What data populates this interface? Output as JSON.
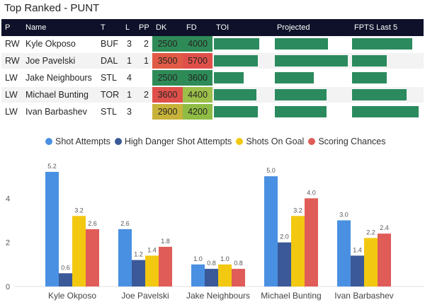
{
  "title": "Top Ranked - PUNT",
  "table": {
    "headers": [
      "P",
      "Name",
      "T",
      "L",
      "PP",
      "DK",
      "FD",
      "TOI",
      "Projected",
      "FPTS Last 5"
    ],
    "rows": [
      {
        "p": "RW",
        "name": "Kyle Okposo",
        "t": "BUF",
        "l": "3",
        "pp": "2",
        "dk": "2500",
        "fd": "4000",
        "dk_color": "#2e8b57",
        "fd_color": "#2e8b57",
        "toi": 0.8,
        "proj": 0.73,
        "fpts": 0.88
      },
      {
        "p": "RW",
        "name": "Joe Pavelski",
        "t": "DAL",
        "l": "1",
        "pp": "1",
        "dk": "3500",
        "fd": "5700",
        "dk_color": "#e05a45",
        "fd_color": "#e0504a",
        "toi": 0.77,
        "proj": 1.0,
        "fpts": 0.5
      },
      {
        "p": "LW",
        "name": "Jake Neighbours",
        "t": "STL",
        "l": "4",
        "pp": "",
        "dk": "2500",
        "fd": "3600",
        "dk_color": "#2e8b57",
        "fd_color": "#2e8b57",
        "toi": 0.52,
        "proj": 0.53,
        "fpts": 0.5
      },
      {
        "p": "LW",
        "name": "Michael Bunting",
        "t": "TOR",
        "l": "1",
        "pp": "2",
        "dk": "3600",
        "fd": "4400",
        "dk_color": "#e0504a",
        "fd_color": "#9cbf4a",
        "toi": 0.75,
        "proj": 0.71,
        "fpts": 0.79
      },
      {
        "p": "LW",
        "name": "Ivan Barbashev",
        "t": "STL",
        "l": "3",
        "pp": "",
        "dk": "2900",
        "fd": "4200",
        "dk_color": "#c8b33a",
        "fd_color": "#8fbc45",
        "toi": 0.77,
        "proj": 0.71,
        "fpts": 0.97
      }
    ],
    "bar_color": "#2b8a5e"
  },
  "chart_data": {
    "type": "bar",
    "categories": [
      "Kyle Okposo",
      "Joe Pavelski",
      "Jake Neighbours",
      "Michael Bunting",
      "Ivan Barbashev"
    ],
    "series": [
      {
        "name": "Shot Attempts",
        "color": "#4a90e2",
        "values": [
          5.2,
          2.6,
          1.0,
          5.0,
          3.0
        ]
      },
      {
        "name": "High Danger Shot Attempts",
        "color": "#3b5998",
        "values": [
          0.6,
          1.2,
          0.8,
          2.0,
          1.4
        ]
      },
      {
        "name": "Shots On Goal",
        "color": "#f2c811",
        "values": [
          3.2,
          1.4,
          1.0,
          3.2,
          2.2
        ]
      },
      {
        "name": "Scoring Chances",
        "color": "#e05c58",
        "values": [
          2.6,
          1.8,
          0.8,
          4.0,
          2.4
        ]
      }
    ],
    "yticks": [
      0,
      2,
      4
    ],
    "ylim": [
      0,
      6
    ],
    "legend_position": "top"
  }
}
